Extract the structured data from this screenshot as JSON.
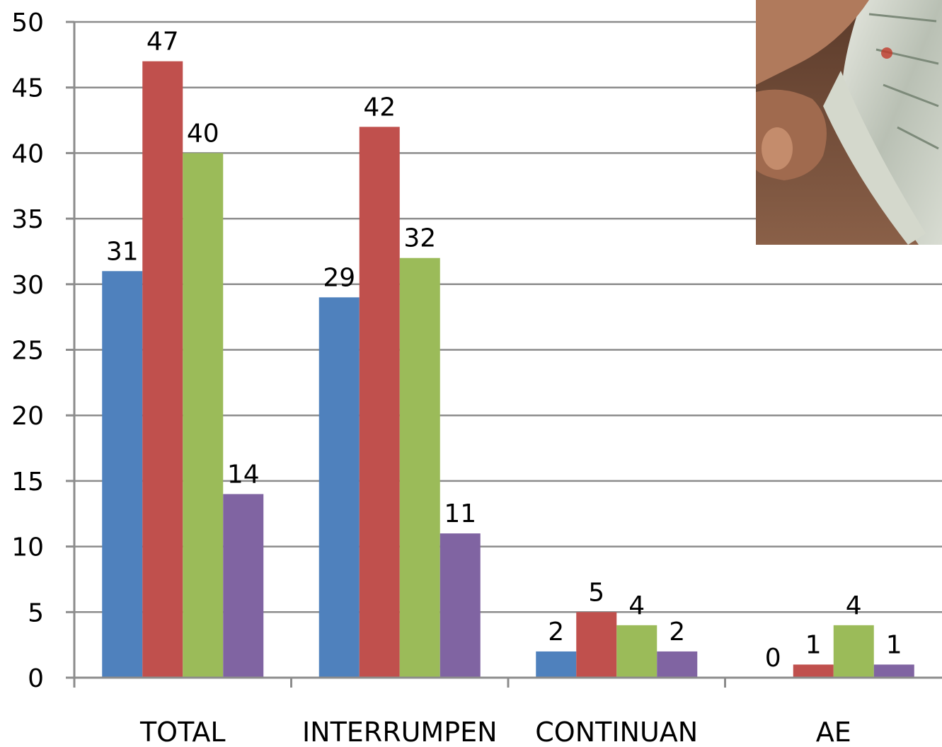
{
  "chart_data": {
    "type": "bar",
    "categories": [
      "TOTAL",
      "INTERRUMPEN",
      "CONTINUAN",
      "AE"
    ],
    "series": [
      {
        "values": [
          31,
          29,
          2,
          0
        ]
      },
      {
        "values": [
          47,
          42,
          5,
          1
        ]
      },
      {
        "values": [
          40,
          32,
          4,
          4
        ]
      },
      {
        "values": [
          14,
          11,
          2,
          1
        ]
      }
    ],
    "series_colors": [
      "#4f81bd",
      "#c0504d",
      "#9bbb59",
      "#8064a2"
    ],
    "ylim": [
      0,
      50
    ],
    "yticks": [
      0,
      5,
      10,
      15,
      20,
      25,
      30,
      35,
      40,
      45,
      50
    ],
    "grid": true,
    "data_labels": true,
    "legend": "none"
  },
  "photo": {
    "icon": "money-bills-photo"
  }
}
